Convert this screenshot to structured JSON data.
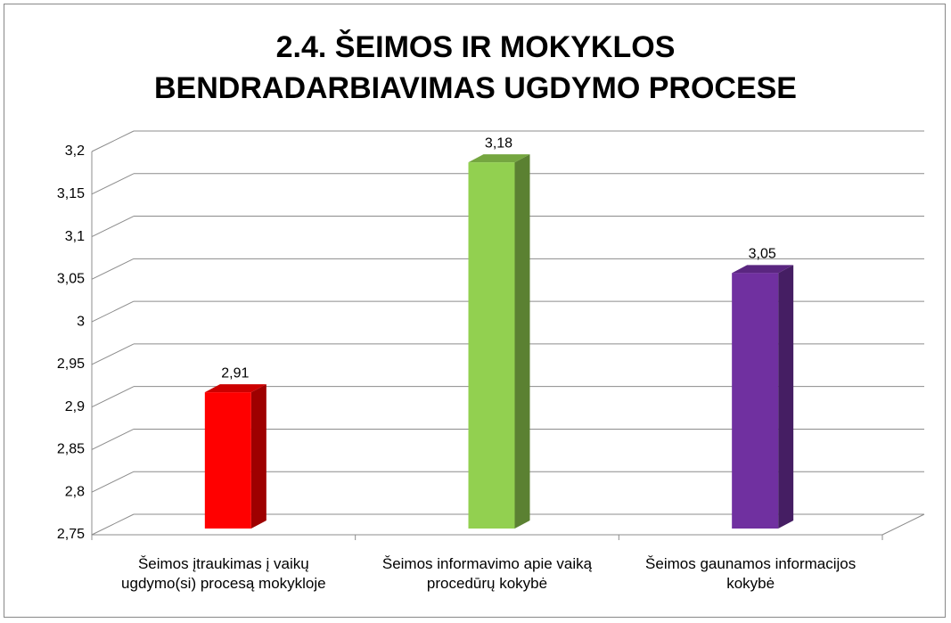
{
  "chart_data": {
    "type": "bar3d",
    "title": "2.4. ŠEIMOS IR MOKYKLOS BENDRADARBIAVIMAS UGDYMO PROCESE",
    "categories": [
      "Šeimos įtraukimas į vaikų ugdymo(si) procesą mokykloje",
      "Šeimos informavimo apie vaiką procedūrų kokybė",
      "Šeimos gaunamos informacijos kokybė"
    ],
    "values": [
      2.91,
      3.18,
      3.05
    ],
    "value_labels": [
      "2,91",
      "3,18",
      "3,05"
    ],
    "colors": [
      "#ff0000",
      "#92d050",
      "#7030a0"
    ],
    "ylim": [
      2.75,
      3.2
    ],
    "yticks": [
      {
        "value": 2.75,
        "label": "2,75"
      },
      {
        "value": 2.8,
        "label": "2,8"
      },
      {
        "value": 2.85,
        "label": "2,85"
      },
      {
        "value": 2.9,
        "label": "2,9"
      },
      {
        "value": 2.95,
        "label": "2,95"
      },
      3,
      {
        "value": 3.05,
        "label": "3,05"
      },
      {
        "value": 3.1,
        "label": "3,1"
      },
      {
        "value": 3.15,
        "label": "3,15"
      },
      {
        "value": 3.2,
        "label": "3,2"
      }
    ],
    "grid": true
  }
}
